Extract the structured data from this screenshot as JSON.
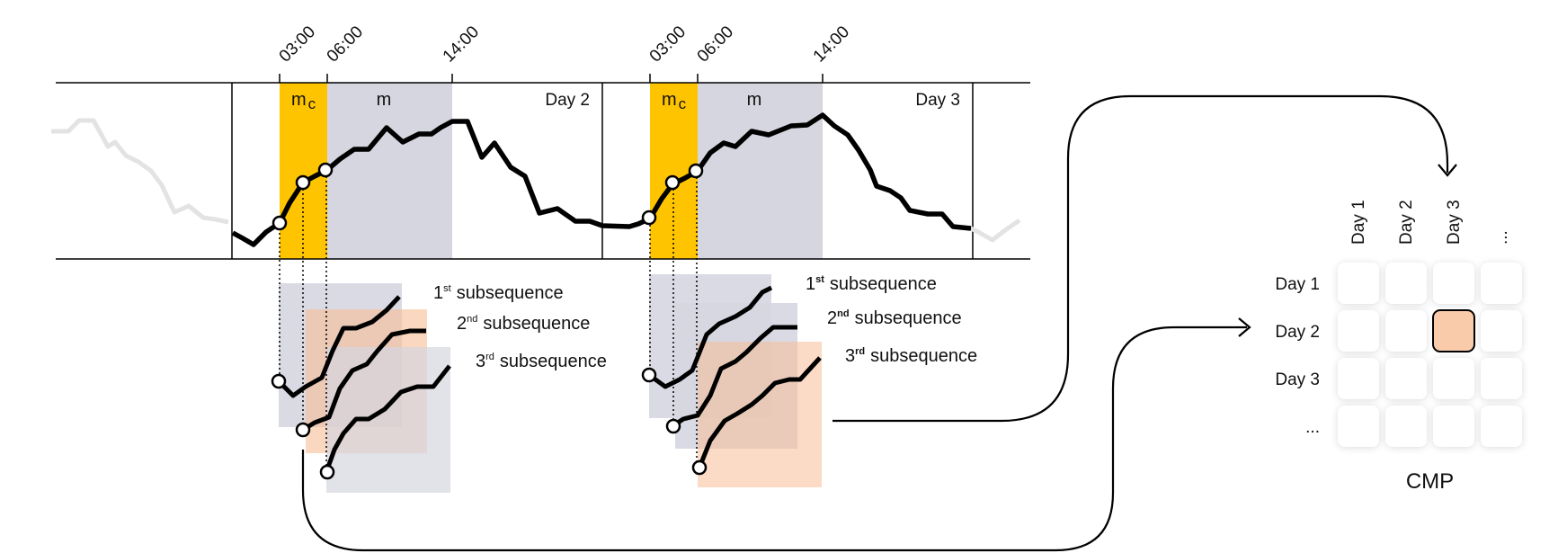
{
  "colors": {
    "current_window": "#FFC400",
    "window": "#D5D6E0",
    "highlight": "#F7BE95",
    "accent_text": "#F07A16",
    "line": "#000000",
    "faded_line": "#E3E3E3"
  },
  "day_panels": [
    {
      "times": [
        "03:00",
        "06:00",
        "14:00"
      ],
      "mc_label": "m",
      "mc_sub": "c",
      "m_label": "m",
      "day_label": "Day 2",
      "subsequences": [
        {
          "ord": "1",
          "sup": "st",
          "text": "subsequence",
          "accent": false
        },
        {
          "ord": "2",
          "sup": "nd",
          "text": "subsequence",
          "accent": true
        },
        {
          "ord": "3",
          "sup": "rd",
          "text": "subsequence",
          "accent": false
        }
      ]
    },
    {
      "times": [
        "03:00",
        "06:00",
        "14:00"
      ],
      "mc_label": "m",
      "mc_sub": "c",
      "m_label": "m",
      "day_label": "Day 3",
      "subsequences": [
        {
          "ord": "1",
          "sup": "st",
          "text": "subsequence",
          "accent": false
        },
        {
          "ord": "2",
          "sup": "nd",
          "text": "subsequence",
          "accent": false
        },
        {
          "ord": "3",
          "sup": "rd",
          "text": "subsequence",
          "accent": true
        }
      ]
    }
  ],
  "matrix": {
    "col_labels": [
      "Day 1",
      "Day 2",
      "Day 3",
      "..."
    ],
    "row_labels": [
      "Day 1",
      "Day 2",
      "Day 3",
      "..."
    ],
    "highlight_cell": {
      "row": 2,
      "col": 3
    },
    "caption": "CMP"
  },
  "icons": {
    "arrow_to_column": "arrow-down-icon",
    "arrow_to_row": "arrow-right-icon",
    "markers": "circle-marker-icon"
  }
}
